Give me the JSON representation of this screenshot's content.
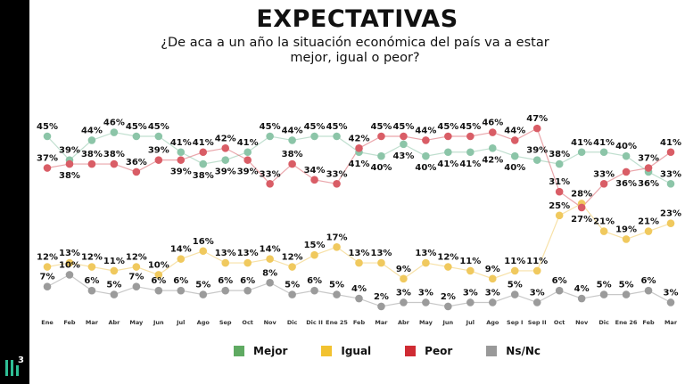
{
  "title": "EXPECTATIVAS",
  "subtitle_line1": "¿De aca a un año la situación económica del país va a estar",
  "subtitle_line2": "mejor, igual o peor?",
  "logo": "lll3",
  "chart_data": {
    "type": "line",
    "title": "EXPECTATIVAS",
    "subtitle": "¿De aca a un año la situación económica del país va a estar mejor, igual o peor?",
    "xlabel": "",
    "ylabel": "",
    "unit": "%",
    "grid": false,
    "legend_placement": "bottom",
    "categories": [
      "Ene",
      "Feb",
      "Mar",
      "Abr",
      "May",
      "Jun",
      "Jul",
      "Ago",
      "Sep",
      "Oct",
      "Nov",
      "Dic",
      "Dic II",
      "Ene 25",
      "Feb",
      "Mar",
      "Abr",
      "May",
      "Jun",
      "Jul",
      "Ago",
      "Sep I",
      "Sep II",
      "Oct",
      "Nov",
      "Dic",
      "Ene 26",
      "Feb",
      "Mar"
    ],
    "series": [
      {
        "name": "Mejor",
        "color": "#8cc5a8",
        "legend_color": "#5faa62",
        "values": [
          45,
          39,
          44,
          46,
          45,
          45,
          41,
          38,
          39,
          41,
          45,
          44,
          45,
          45,
          41,
          40,
          43,
          40,
          41,
          41,
          42,
          40,
          39,
          38,
          41,
          41,
          40,
          36,
          33
        ]
      },
      {
        "name": "Igual",
        "color": "#f0c95e",
        "legend_color": "#f2c230",
        "values": [
          12,
          13,
          12,
          11,
          12,
          10,
          14,
          16,
          13,
          13,
          14,
          12,
          15,
          17,
          13,
          13,
          9,
          13,
          12,
          11,
          9,
          11,
          11,
          25,
          28,
          21,
          19,
          21,
          23
        ]
      },
      {
        "name": "Peor",
        "color": "#d95d66",
        "legend_color": "#cf2b33",
        "values": [
          37,
          38,
          38,
          38,
          36,
          39,
          39,
          41,
          42,
          39,
          33,
          38,
          34,
          33,
          42,
          45,
          45,
          44,
          45,
          45,
          46,
          44,
          47,
          31,
          27,
          33,
          36,
          37,
          41
        ]
      },
      {
        "name": "Ns/Nc",
        "color": "#9b9b9b",
        "legend_color": "#999999",
        "values": [
          7,
          10,
          6,
          5,
          7,
          6,
          6,
          5,
          6,
          6,
          8,
          5,
          6,
          5,
          4,
          2,
          3,
          3,
          2,
          3,
          3,
          5,
          3,
          6,
          4,
          5,
          5,
          6,
          3
        ]
      }
    ]
  }
}
